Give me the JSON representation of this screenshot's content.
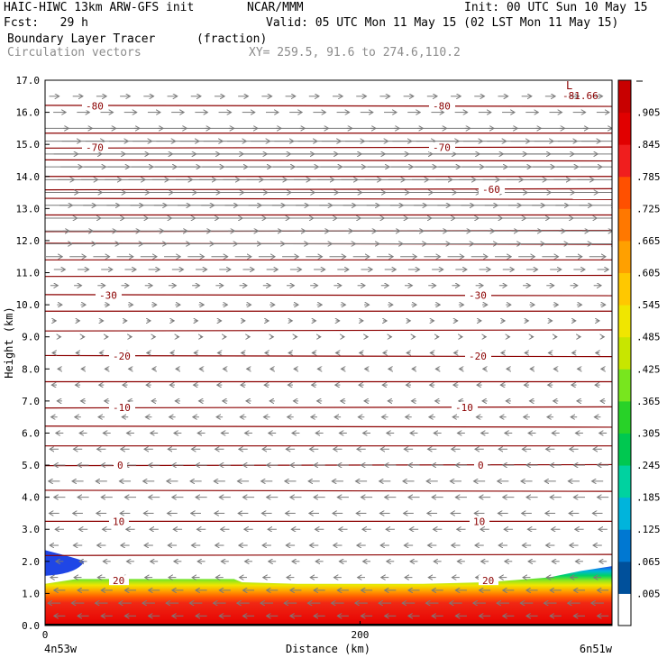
{
  "header": {
    "model": "HAIC-HIWC 13km ARW-GFS init",
    "org": "NCAR/MMM",
    "init": "Init: 00 UTC Sun 10 May 15",
    "fcst": "Fcst:   29 h",
    "valid": "Valid: 05 UTC Mon 11 May 15 (02 LST Mon 11 May 15)",
    "field": "Boundary Layer Tracer",
    "units": "(fraction)",
    "vectors": "Circulation vectors",
    "xy": "XY= 259.5, 91.6 to 274.6,110.2"
  },
  "chart_data": {
    "type": "heatmap",
    "title": "Boundary Layer Tracer",
    "units": "(fraction)",
    "xlabel": "Distance (km)",
    "ylabel": "Height (km)",
    "xlim": [
      0,
      360
    ],
    "ylim": [
      0,
      17
    ],
    "x_ticks": [
      0,
      200
    ],
    "x_end_labels": {
      "left": "4n53w",
      "right": "6n51w"
    },
    "y_ticks": [
      "0.0",
      "1.0",
      "2.0",
      "3.0",
      "4.0",
      "5.0",
      "6.0",
      "7.0",
      "8.0",
      "9.0",
      "10.0",
      "11.0",
      "12.0",
      "13.0",
      "14.0",
      "15.0",
      "16.0",
      "17.0"
    ],
    "colorbar": {
      "labels": [
        ".005",
        ".065",
        ".125",
        ".185",
        ".245",
        ".305",
        ".365",
        ".425",
        ".485",
        ".545",
        ".605",
        ".665",
        ".725",
        ".785",
        ".845",
        ".905"
      ],
      "colors": [
        "#ffffff",
        "#00509b",
        "#0078d2",
        "#00b4dc",
        "#00d2a0",
        "#00c850",
        "#28d228",
        "#78e61e",
        "#c8e600",
        "#f0e600",
        "#ffc800",
        "#ffa000",
        "#ff7800",
        "#ff5000",
        "#f01e1e",
        "#e10000",
        "#c80000"
      ]
    },
    "temperature_contours": [
      {
        "label": "-80",
        "height": 16.2
      },
      {
        "label": "-70",
        "height": 14.9
      },
      {
        "label": "-60",
        "height": 13.6
      },
      {
        "label": "-30",
        "height": 10.3
      },
      {
        "label": "-20",
        "height": 8.4
      },
      {
        "label": "-10",
        "height": 6.8
      },
      {
        "label": "0",
        "height": 5.0
      },
      {
        "label": "10",
        "height": 3.25
      },
      {
        "label": "20",
        "height": 1.4
      }
    ],
    "contour_levels": [
      16.2,
      15.35,
      14.9,
      14.5,
      14.0,
      13.6,
      13.3,
      12.8,
      12.3,
      11.9,
      11.4,
      10.9,
      10.3,
      9.8,
      9.2,
      8.4,
      7.6,
      6.8,
      6.2,
      5.6,
      5.0,
      4.2,
      3.25,
      2.2
    ],
    "min_label": {
      "marker": "L",
      "value": "-81.66"
    },
    "boundary_layer": {
      "x": [
        0,
        20,
        40,
        80,
        120,
        125,
        160,
        200,
        240,
        280,
        320,
        340,
        360
      ],
      "top_km": [
        1.3,
        1.45,
        1.45,
        1.45,
        1.45,
        1.35,
        1.3,
        1.3,
        1.3,
        1.35,
        1.5,
        1.7,
        1.85
      ]
    },
    "elevated_patch": {
      "x": [
        0,
        20,
        25
      ],
      "top_km": [
        2.35,
        2.1,
        2.0
      ],
      "bottom_km": [
        1.55,
        1.6,
        2.0
      ]
    },
    "wind_vectors": {
      "levels": [
        {
          "z": 16.5,
          "u": 0.8
        },
        {
          "z": 16.0,
          "u": 1.0
        },
        {
          "z": 15.5,
          "u": 2.3
        },
        {
          "z": 15.1,
          "u": 3.4
        },
        {
          "z": 14.7,
          "u": 3.8
        },
        {
          "z": 14.3,
          "u": 3.6
        },
        {
          "z": 13.9,
          "u": 3.2
        },
        {
          "z": 13.5,
          "u": 3.0
        },
        {
          "z": 13.1,
          "u": 2.9
        },
        {
          "z": 12.7,
          "u": 2.8
        },
        {
          "z": 12.3,
          "u": 2.4
        },
        {
          "z": 11.9,
          "u": 2.0
        },
        {
          "z": 11.5,
          "u": 1.3
        },
        {
          "z": 11.1,
          "u": 0.9
        },
        {
          "z": 10.6,
          "u": 0.6
        },
        {
          "z": 10.0,
          "u": 0.4
        },
        {
          "z": 9.5,
          "u": 0.3
        },
        {
          "z": 9.0,
          "u": 0.2
        },
        {
          "z": 8.5,
          "u": -0.3
        },
        {
          "z": 8.0,
          "u": -0.3
        },
        {
          "z": 7.5,
          "u": -0.4
        },
        {
          "z": 7.0,
          "u": -0.4
        },
        {
          "z": 6.5,
          "u": -0.5
        },
        {
          "z": 6.0,
          "u": -0.6
        },
        {
          "z": 5.5,
          "u": -0.7
        },
        {
          "z": 5.0,
          "u": -0.9
        },
        {
          "z": 4.5,
          "u": -0.9
        },
        {
          "z": 4.0,
          "u": -0.9
        },
        {
          "z": 3.5,
          "u": -0.8
        },
        {
          "z": 3.0,
          "u": -0.7
        },
        {
          "z": 2.5,
          "u": -0.7
        },
        {
          "z": 2.0,
          "u": -0.6
        },
        {
          "z": 1.5,
          "u": -0.6
        },
        {
          "z": 1.1,
          "u": -0.9
        },
        {
          "z": 0.7,
          "u": -1.0
        },
        {
          "z": 0.3,
          "u": -0.9
        }
      ],
      "columns": 24
    }
  }
}
